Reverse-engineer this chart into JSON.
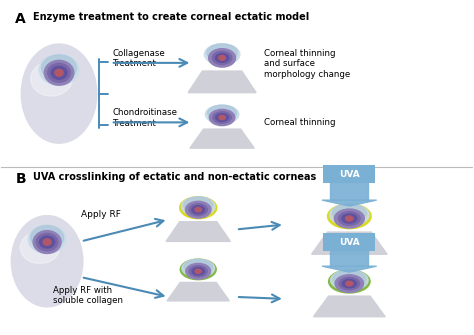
{
  "title_A": "Enzyme treatment to create corneal ectatic model",
  "title_B": "UVA crosslinking of ectatic and non-ectatic corneas",
  "label_A": "A",
  "label_B": "B",
  "text_collagenase": "Collagenase\nTreatment",
  "text_chondroitinase": "Chondroitinase\nTreatment",
  "text_corneal_thinning_surface": "Corneal thinning\nand surface\nmorphology change",
  "text_corneal_thinning": "Corneal thinning",
  "text_apply_rf": "Apply RF",
  "text_apply_rf_collagen": "Apply RF with\nsoluble collagen",
  "text_uva": "UVA",
  "bg_color": "#ffffff",
  "arrow_color": "#4a8ab5",
  "eye_white": "#dcdce8",
  "eye_white_grad": "#e8e8f0",
  "eye_cornea_blue": "#b0c8dc",
  "eye_cornea_blue2": "#c8dce8",
  "eye_iris_purple": "#9080b8",
  "eye_iris_mid": "#7868a8",
  "eye_iris_dark": "#6050a0",
  "eye_pupil": "#b05868",
  "cornea_base": "#d0d0d8",
  "cornea_base2": "#c8c8d0",
  "uva_box": "#7ab0d4",
  "uva_arrow": "#7ab0d4",
  "rf_yellow": "#d8d820",
  "rf_green": "#80b840",
  "rf_teal": "#60a0a0"
}
